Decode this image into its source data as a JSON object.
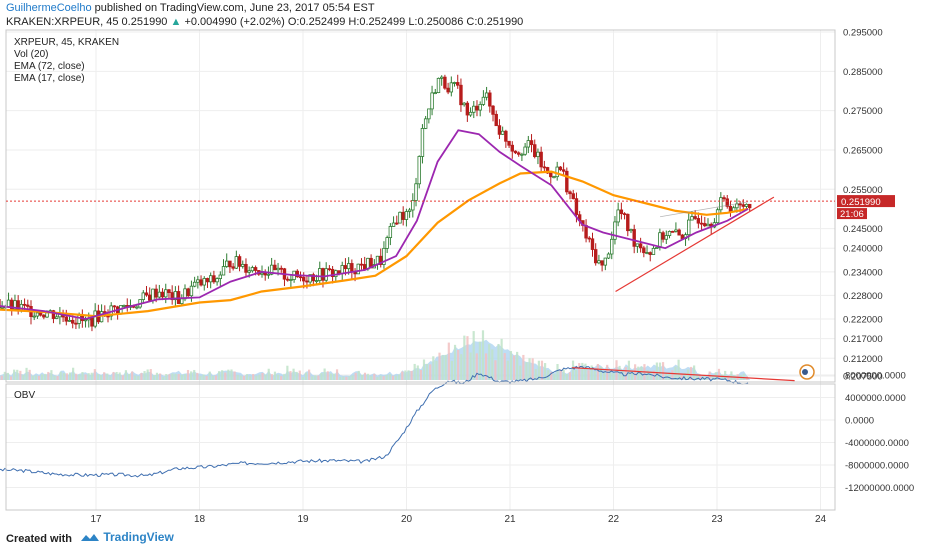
{
  "header": {
    "author": "GuilhermeCoelho",
    "published": "published on TradingView.com, June 23, 2017 05:54 EST",
    "symbol": "KRAKEN:XRPEUR, 45",
    "price": "0.251990",
    "change": "+0.004990 (+2.02%)",
    "ohlc": "O:0.252499 H:0.252499 L:0.250086 C:0.251990"
  },
  "legend": {
    "line1": "XRPEUR, 45, KRAKEN",
    "line2": "Vol (20)",
    "line3": "EMA (72, close)",
    "line4": "EMA (17, close)"
  },
  "obv_label": "OBV",
  "price_tag": "0.251990",
  "time_tag": "21:06",
  "footer": {
    "created": "Created with",
    "brand": "TradingView"
  },
  "colors": {
    "up": "#26a69a",
    "down": "#ef5350",
    "candle_up": "#2e7d32",
    "candle_down": "#b71c1c",
    "ema72": "#ff9800",
    "ema17": "#9c27b0",
    "obv": "#3f6fb0",
    "trendline": "#e53935",
    "volume": "#a9d2f0"
  },
  "chart_data": [
    {
      "type": "candlestick",
      "title": "XRPEUR, 45, KRAKEN",
      "x_ticks": [
        "17",
        "18",
        "19",
        "20",
        "21",
        "22",
        "23",
        "24"
      ],
      "y_ticks": [
        "0.295000",
        "0.285000",
        "0.275000",
        "0.265000",
        "0.255000",
        "0.245000",
        "0.240000",
        "0.234000",
        "0.228000",
        "0.222000",
        "0.217000",
        "0.212000",
        "0.207500"
      ],
      "ylim": [
        0.2065,
        0.296
      ],
      "last_price": 0.25199,
      "ema72": [
        [
          16.0,
          0.2245
        ],
        [
          16.5,
          0.2238
        ],
        [
          17.0,
          0.2227
        ],
        [
          17.5,
          0.224
        ],
        [
          18.0,
          0.2262
        ],
        [
          18.3,
          0.2268
        ],
        [
          18.6,
          0.229
        ],
        [
          19.0,
          0.2303
        ],
        [
          19.4,
          0.2318
        ],
        [
          19.7,
          0.233
        ],
        [
          20.0,
          0.238
        ],
        [
          20.3,
          0.2465
        ],
        [
          20.6,
          0.2522
        ],
        [
          20.9,
          0.2565
        ],
        [
          21.1,
          0.259
        ],
        [
          21.4,
          0.2595
        ],
        [
          21.7,
          0.257
        ],
        [
          22.0,
          0.2535
        ],
        [
          22.3,
          0.2515
        ],
        [
          22.6,
          0.2495
        ],
        [
          22.9,
          0.2485
        ],
        [
          23.1,
          0.249
        ],
        [
          23.3,
          0.25
        ]
      ],
      "ema17": [
        [
          16.0,
          0.2255
        ],
        [
          16.5,
          0.224
        ],
        [
          16.9,
          0.222
        ],
        [
          17.3,
          0.225
        ],
        [
          17.6,
          0.227
        ],
        [
          18.0,
          0.2275
        ],
        [
          18.3,
          0.2315
        ],
        [
          18.6,
          0.234
        ],
        [
          18.9,
          0.2332
        ],
        [
          19.2,
          0.2328
        ],
        [
          19.6,
          0.2345
        ],
        [
          19.9,
          0.238
        ],
        [
          20.1,
          0.247
        ],
        [
          20.3,
          0.262
        ],
        [
          20.5,
          0.27
        ],
        [
          20.7,
          0.269
        ],
        [
          20.9,
          0.2645
        ],
        [
          21.1,
          0.261
        ],
        [
          21.4,
          0.256
        ],
        [
          21.7,
          0.246
        ],
        [
          21.9,
          0.244
        ],
        [
          22.2,
          0.242
        ],
        [
          22.5,
          0.24
        ],
        [
          22.8,
          0.244
        ],
        [
          23.1,
          0.247
        ],
        [
          23.3,
          0.25
        ]
      ],
      "close_path": [
        [
          16.0,
          0.2262
        ],
        [
          16.3,
          0.2245
        ],
        [
          16.55,
          0.2235
        ],
        [
          16.75,
          0.2225
        ],
        [
          16.9,
          0.221
        ],
        [
          17.1,
          0.224
        ],
        [
          17.35,
          0.2255
        ],
        [
          17.6,
          0.2292
        ],
        [
          17.8,
          0.227
        ],
        [
          17.95,
          0.2305
        ],
        [
          18.15,
          0.2318
        ],
        [
          18.3,
          0.2368
        ],
        [
          18.5,
          0.235
        ],
        [
          18.7,
          0.234
        ],
        [
          18.9,
          0.2325
        ],
        [
          19.1,
          0.233
        ],
        [
          19.3,
          0.2338
        ],
        [
          19.55,
          0.2355
        ],
        [
          19.75,
          0.2368
        ],
        [
          19.9,
          0.248
        ],
        [
          20.05,
          0.249
        ],
        [
          20.15,
          0.27
        ],
        [
          20.3,
          0.283
        ],
        [
          20.5,
          0.28
        ],
        [
          20.6,
          0.273
        ],
        [
          20.75,
          0.2795
        ],
        [
          20.9,
          0.27
        ],
        [
          21.05,
          0.265
        ],
        [
          21.2,
          0.266
        ],
        [
          21.35,
          0.259
        ],
        [
          21.5,
          0.26
        ],
        [
          21.65,
          0.248
        ],
        [
          21.8,
          0.239
        ],
        [
          21.9,
          0.2345
        ],
        [
          22.05,
          0.25
        ],
        [
          22.2,
          0.242
        ],
        [
          22.35,
          0.239
        ],
        [
          22.5,
          0.244
        ],
        [
          22.65,
          0.243
        ],
        [
          22.8,
          0.248
        ],
        [
          22.95,
          0.247
        ],
        [
          23.05,
          0.252
        ],
        [
          23.2,
          0.25
        ],
        [
          23.3,
          0.252
        ]
      ]
    },
    {
      "type": "line",
      "title": "OBV",
      "x_ticks": [
        "17",
        "18",
        "19",
        "20",
        "21",
        "22",
        "23",
        "24"
      ],
      "y_ticks": [
        "8000000.0000",
        "4000000.0000",
        "0.0000",
        "-4000000.0000",
        "-8000000.0000",
        "-12000000.0000"
      ],
      "ylim": [
        -12000000,
        10000000
      ],
      "x": [
        16.0,
        16.3,
        16.6,
        16.9,
        17.2,
        17.5,
        17.8,
        18.1,
        18.4,
        18.7,
        19.0,
        19.3,
        19.6,
        19.8,
        19.95,
        20.1,
        20.25,
        20.4,
        20.55,
        20.7,
        20.9,
        21.1,
        21.3,
        21.5,
        21.7,
        21.9,
        22.1,
        22.3,
        22.5,
        22.7,
        22.9,
        23.1,
        23.3
      ],
      "values": [
        -8800000,
        -9000000,
        -9600000,
        -9800000,
        -9700000,
        -9900000,
        -8600000,
        -8300000,
        -7700000,
        -7600000,
        -7300000,
        -7200000,
        -7400000,
        -6400000,
        -2800000,
        1500000,
        5200000,
        7000000,
        6500000,
        8400000,
        6800000,
        6900000,
        7500000,
        9000000,
        9500000,
        8700000,
        8100000,
        8300000,
        7600000,
        7400000,
        7300000,
        7100000,
        6400000
      ],
      "trendline": [
        [
          21.6,
          9300000
        ],
        [
          23.75,
          7000000
        ]
      ]
    }
  ]
}
